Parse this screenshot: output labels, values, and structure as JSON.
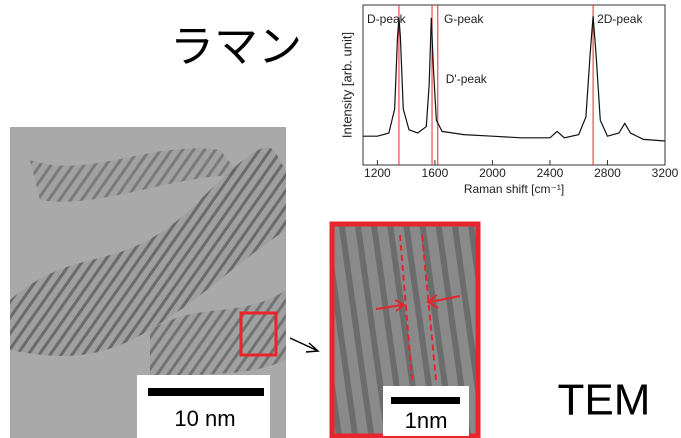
{
  "chart_data": {
    "type": "line",
    "x_label": "Raman shift [cm⁻¹]",
    "y_label": "Intensity [arb. unit]",
    "x": [
      1100,
      1200,
      1280,
      1320,
      1340,
      1350,
      1360,
      1380,
      1420,
      1480,
      1540,
      1560,
      1575,
      1590,
      1610,
      1650,
      1800,
      2000,
      2200,
      2400,
      2450,
      2500,
      2600,
      2650,
      2680,
      2700,
      2720,
      2750,
      2800,
      2880,
      2920,
      2960,
      3050,
      3200
    ],
    "series": [
      {
        "color": "#111111",
        "values": [
          18,
          18,
          20,
          35,
          80,
          92,
          80,
          35,
          22,
          20,
          24,
          50,
          92,
          60,
          28,
          21,
          19,
          18,
          17,
          17,
          21,
          17,
          19,
          30,
          70,
          93,
          70,
          28,
          18,
          20,
          26,
          20,
          16,
          15
        ]
      }
    ],
    "peaks": [
      {
        "label": "D-peak",
        "x": 1350
      },
      {
        "label": "G-peak",
        "x": 1580
      },
      {
        "label": "D'-peak",
        "x": 1620
      },
      {
        "label": "2D-peak",
        "x": 2700
      }
    ],
    "peak_color": "#e8242c",
    "xlim": [
      1100,
      3200
    ],
    "xticks": [
      1200,
      1600,
      2000,
      2400,
      2800,
      3200
    ],
    "ylim": [
      0,
      100
    ]
  },
  "labels": {
    "raman": "ラマン",
    "tem": "TEM",
    "scale_large": "10 nm",
    "scale_small": "1nm"
  }
}
